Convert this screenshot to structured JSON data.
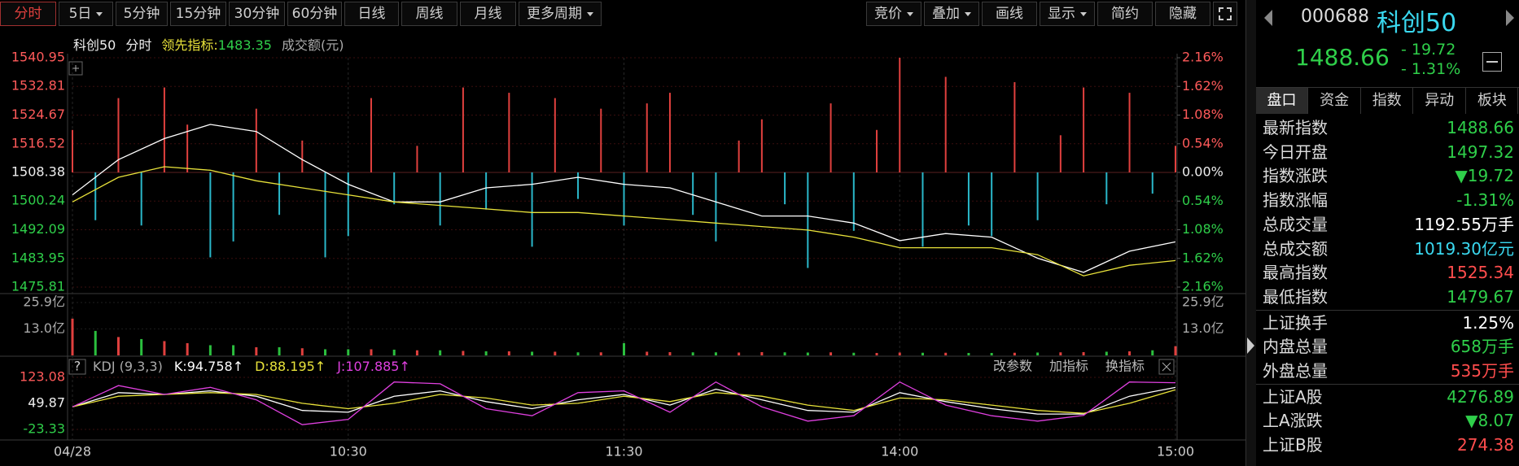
{
  "toolbar": {
    "periods": [
      {
        "label": "分时"
      },
      {
        "label": "5日",
        "menu": true
      },
      {
        "label": "5分钟"
      },
      {
        "label": "15分钟"
      },
      {
        "label": "30分钟"
      },
      {
        "label": "60分钟"
      },
      {
        "label": "日线"
      },
      {
        "label": "周线"
      },
      {
        "label": "月线"
      },
      {
        "label": "更多周期",
        "menu": true
      }
    ],
    "tools": [
      {
        "label": "竞价",
        "menu": true
      },
      {
        "label": "叠加",
        "menu": true
      },
      {
        "label": "画线"
      },
      {
        "label": "显示",
        "menu": true
      },
      {
        "label": "简约"
      },
      {
        "label": "隐藏"
      }
    ]
  },
  "chart_data": [
    {
      "type": "line",
      "title": "科创50",
      "subtitle": "分时",
      "lead_name": "领先指标:",
      "lead_value": 1483.35,
      "volume_label": "成交额(元)",
      "x": [
        0,
        10,
        20,
        30,
        40,
        50,
        60,
        70,
        80,
        90,
        100,
        110,
        120,
        130,
        140,
        150,
        160,
        170,
        180,
        190,
        200,
        210,
        220,
        230,
        240
      ],
      "xlim": [
        0,
        240
      ],
      "xticks": [
        {
          "value": 0,
          "label": "04/28"
        },
        {
          "value": 60,
          "label": "10:30"
        },
        {
          "value": 120,
          "label": "11:30"
        },
        {
          "value": 180,
          "label": "14:00"
        },
        {
          "value": 240,
          "label": "15:00"
        }
      ],
      "ylim": [
        1475.81,
        1540.95
      ],
      "yticks": [
        1540.95,
        1532.81,
        1524.67,
        1516.52,
        1508.38,
        1500.24,
        1492.09,
        1483.95,
        1475.81
      ],
      "y2lim": [
        -2.16,
        2.16
      ],
      "y2ticks": [
        {
          "value": 2.16,
          "label": "2.16%"
        },
        {
          "value": 1.62,
          "label": "1.62%"
        },
        {
          "value": 1.08,
          "label": "1.08%"
        },
        {
          "value": 0.54,
          "label": "0.54%"
        },
        {
          "value": 0,
          "label": "0.00%"
        },
        {
          "value": -0.54,
          "label": "0.54%"
        },
        {
          "value": -1.08,
          "label": "1.08%"
        },
        {
          "value": -1.62,
          "label": "1.62%"
        },
        {
          "value": -2.16,
          "label": "2.16%"
        }
      ],
      "grid": true,
      "series": [
        {
          "color": "#ffffff",
          "values": [
            1502,
            1512,
            1518,
            1522,
            1520,
            1512,
            1505,
            1500,
            1500,
            1504,
            1505,
            1507,
            1505,
            1504,
            1500,
            1496,
            1496,
            1494,
            1489,
            1491,
            1490,
            1484,
            1480,
            1486,
            1488.66
          ]
        },
        {
          "color": "#e8e23a",
          "values": [
            1500,
            1507,
            1510,
            1509,
            1506,
            1504,
            1502,
            1500,
            1499,
            1498,
            1497,
            1497,
            1496,
            1495,
            1494,
            1493,
            1492,
            1490,
            1487,
            1487,
            1487,
            1485,
            1479,
            1482,
            1483.35
          ]
        }
      ],
      "bars": {
        "axis": "y2",
        "up_color": "#e0403e",
        "down_color": "#2ab7c9",
        "x": [
          0,
          5,
          10,
          15,
          20,
          25,
          30,
          35,
          40,
          45,
          50,
          55,
          60,
          65,
          70,
          75,
          80,
          85,
          90,
          95,
          100,
          105,
          110,
          115,
          120,
          125,
          130,
          135,
          140,
          145,
          150,
          155,
          160,
          165,
          170,
          175,
          180,
          185,
          190,
          195,
          200,
          205,
          210,
          215,
          220,
          225,
          230,
          235,
          240
        ],
        "values": [
          0.8,
          -0.9,
          1.4,
          -1.0,
          1.6,
          0.9,
          -1.6,
          -1.3,
          1.2,
          -0.8,
          0.6,
          -1.6,
          -1.2,
          1.4,
          -0.6,
          0.5,
          -1.0,
          1.6,
          -0.7,
          1.5,
          -1.4,
          1.4,
          -0.5,
          1.2,
          -1.0,
          1.3,
          1.5,
          -0.8,
          -1.3,
          0.6,
          1.0,
          -0.6,
          -1.8,
          1.3,
          -1.1,
          0.8,
          2.16,
          -1.4,
          1.8,
          -1.0,
          -1.2,
          1.7,
          -0.9,
          0.7,
          1.6,
          -0.6,
          1.5,
          -0.4,
          0.5
        ]
      }
    },
    {
      "type": "bar",
      "x": [
        0,
        5,
        10,
        15,
        20,
        25,
        30,
        35,
        40,
        45,
        50,
        55,
        60,
        65,
        70,
        75,
        80,
        85,
        90,
        95,
        100,
        105,
        110,
        115,
        120,
        125,
        130,
        135,
        140,
        145,
        150,
        155,
        160,
        165,
        170,
        175,
        180,
        185,
        190,
        195,
        200,
        205,
        210,
        215,
        220,
        225,
        230,
        235,
        240
      ],
      "xlim": [
        0,
        240
      ],
      "ylim": [
        0,
        25.9
      ],
      "yticks": [
        {
          "value": 25.9,
          "label": "25.9亿"
        },
        {
          "value": 13.0,
          "label": "13.0亿"
        }
      ],
      "values": [
        18,
        12,
        9,
        8,
        7,
        6,
        5,
        5,
        4,
        4,
        3.5,
        3,
        3,
        3,
        2.8,
        2.5,
        2.5,
        2.2,
        2,
        2,
        1.8,
        1.8,
        1.5,
        1.5,
        6,
        1.8,
        1.6,
        1.5,
        1.5,
        1.4,
        1.6,
        1.5,
        1.4,
        1.5,
        1.3,
        1.2,
        1.4,
        1.3,
        1.3,
        1.2,
        1.2,
        1.3,
        1.4,
        1.5,
        1.6,
        1.8,
        2,
        2.5,
        4.5
      ],
      "colors": [
        "#e0403e",
        "#2bbf3e",
        "#e0403e",
        "#2bbf3e",
        "#e0403e",
        "#e0403e",
        "#2bbf3e",
        "#2bbf3e",
        "#e0403e",
        "#2bbf3e",
        "#e0403e",
        "#2bbf3e",
        "#2bbf3e",
        "#e0403e",
        "#2bbf3e",
        "#e0403e",
        "#2bbf3e",
        "#e0403e",
        "#2bbf3e",
        "#e0403e",
        "#2bbf3e",
        "#e0403e",
        "#2bbf3e",
        "#e0403e",
        "#2bbf3e",
        "#e0403e",
        "#e0403e",
        "#2bbf3e",
        "#2bbf3e",
        "#e0403e",
        "#e0403e",
        "#2bbf3e",
        "#2bbf3e",
        "#e0403e",
        "#2bbf3e",
        "#e0403e",
        "#e0403e",
        "#2bbf3e",
        "#e0403e",
        "#2bbf3e",
        "#2bbf3e",
        "#e0403e",
        "#2bbf3e",
        "#e0403e",
        "#e0403e",
        "#2bbf3e",
        "#e0403e",
        "#2bbf3e",
        "#e0403e"
      ]
    },
    {
      "type": "line",
      "title": "KDJ (9,3,3)",
      "buttons": [
        "改参数",
        "加指标",
        "换指标"
      ],
      "x": [
        0,
        10,
        20,
        30,
        40,
        50,
        60,
        70,
        80,
        90,
        100,
        110,
        120,
        130,
        140,
        150,
        160,
        170,
        180,
        190,
        200,
        210,
        220,
        230,
        240
      ],
      "xlim": [
        0,
        240
      ],
      "ylim": [
        -23.33,
        123.08
      ],
      "yticks": [
        123.08,
        49.87,
        -23.33
      ],
      "series": [
        {
          "name": "K:",
          "last": 94.758,
          "trend": "↑",
          "color": "#ffffff",
          "values": [
            40,
            80,
            75,
            85,
            70,
            30,
            25,
            70,
            85,
            55,
            35,
            60,
            75,
            45,
            90,
            60,
            30,
            25,
            80,
            55,
            35,
            20,
            20,
            70,
            94.758
          ]
        },
        {
          "name": "D:",
          "last": 88.195,
          "trend": "↑",
          "color": "#e8e23a",
          "values": [
            40,
            70,
            75,
            80,
            75,
            50,
            35,
            50,
            75,
            65,
            45,
            50,
            70,
            55,
            80,
            70,
            45,
            30,
            65,
            60,
            45,
            30,
            22,
            50,
            88.195
          ]
        },
        {
          "name": "J:",
          "last": 107.885,
          "trend": "↑",
          "color": "#e040e0",
          "values": [
            40,
            100,
            75,
            95,
            60,
            -10,
            5,
            110,
            105,
            35,
            15,
            80,
            85,
            25,
            110,
            40,
            0,
            15,
            110,
            45,
            15,
            0,
            16,
            110,
            107.885
          ]
        }
      ]
    }
  ],
  "quote": {
    "code": "000688",
    "name": "科创50",
    "price": "1488.66",
    "change": "- 19.72",
    "change_pct": "- 1.31%"
  },
  "tabs": [
    "盘口",
    "资金",
    "指数",
    "异动",
    "板块"
  ],
  "groups": [
    [
      {
        "label": "最新指数",
        "value": "1488.66",
        "color": "#2fcf4a"
      },
      {
        "label": "今日开盘",
        "value": "1497.32",
        "color": "#2fcf4a"
      },
      {
        "label": "指数涨跌",
        "value": "▼19.72",
        "color": "#2fcf4a"
      },
      {
        "label": "指数涨幅",
        "value": "-1.31%",
        "color": "#2fcf4a"
      },
      {
        "label": "总成交量",
        "value": "1192.55",
        "unit": "万手",
        "color": "#ffffff",
        "unit_color": "#ffffff"
      },
      {
        "label": "总成交额",
        "value": "1019.30",
        "unit": "亿元",
        "color": "#3ad9f0",
        "unit_color": "#3ad9f0"
      },
      {
        "label": "最高指数",
        "value": "1525.34",
        "color": "#ff4d4d"
      },
      {
        "label": "最低指数",
        "value": "1479.67",
        "color": "#2fcf4a"
      }
    ],
    [
      {
        "label": "上证换手",
        "value": "1.25%",
        "color": "#ffffff"
      },
      {
        "label": "内盘总量",
        "value": "658",
        "unit": "万手",
        "color": "#2fcf4a",
        "unit_color": "#2fcf4a"
      },
      {
        "label": "外盘总量",
        "value": "535",
        "unit": "万手",
        "color": "#ff4d4d",
        "unit_color": "#ff4d4d"
      }
    ],
    [
      {
        "label": "上证A股",
        "value": "4276.89",
        "color": "#2fcf4a"
      },
      {
        "label": "上A涨跌",
        "value": "▼8.07",
        "color": "#2fcf4a"
      },
      {
        "label": "上证B股",
        "value": "274.38",
        "color": "#ff4d4d"
      }
    ]
  ]
}
